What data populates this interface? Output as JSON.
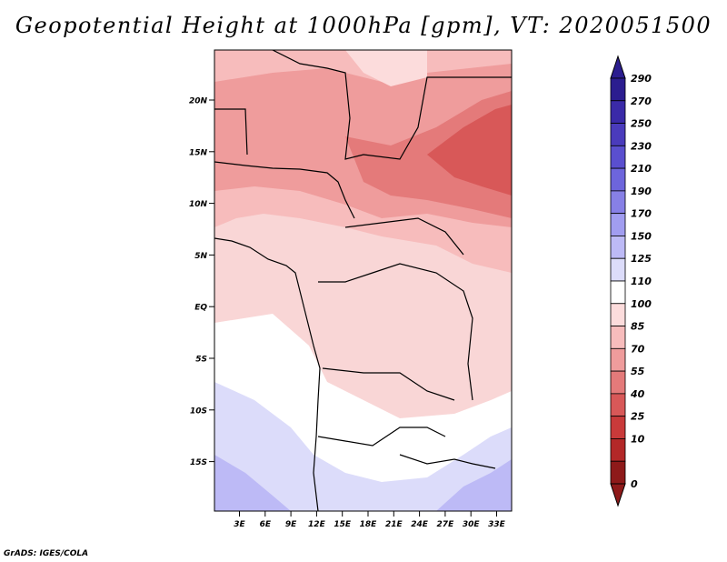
{
  "title": "Geopotential Height at 1000hPa [gpm], VT: 2020051500",
  "footer": "GrADS: IGES/COLA",
  "map": {
    "lon_labels": [
      "3E",
      "6E",
      "9E",
      "12E",
      "15E",
      "18E",
      "21E",
      "24E",
      "27E",
      "30E",
      "33E"
    ],
    "lat_labels": [
      "20N",
      "15N",
      "10N",
      "5N",
      "EQ",
      "5S",
      "10S",
      "15S"
    ]
  },
  "colorbar": {
    "labels": [
      "290",
      "270",
      "250",
      "230",
      "210",
      "190",
      "170",
      "150",
      "125",
      "110",
      "100",
      "85",
      "70",
      "55",
      "40",
      "25",
      "10",
      "0"
    ],
    "colors": [
      "#2b1d8f",
      "#3a2aa8",
      "#4a3bbc",
      "#5a4fcf",
      "#6d65dc",
      "#8780e6",
      "#a19df0",
      "#bdbaf6",
      "#dcdcfa",
      "#ffffff",
      "#fcdcdc",
      "#f7bcbc",
      "#ef9c9c",
      "#e47a7a",
      "#d85858",
      "#c93a3a",
      "#b32828",
      "#8e1a1a"
    ]
  }
}
